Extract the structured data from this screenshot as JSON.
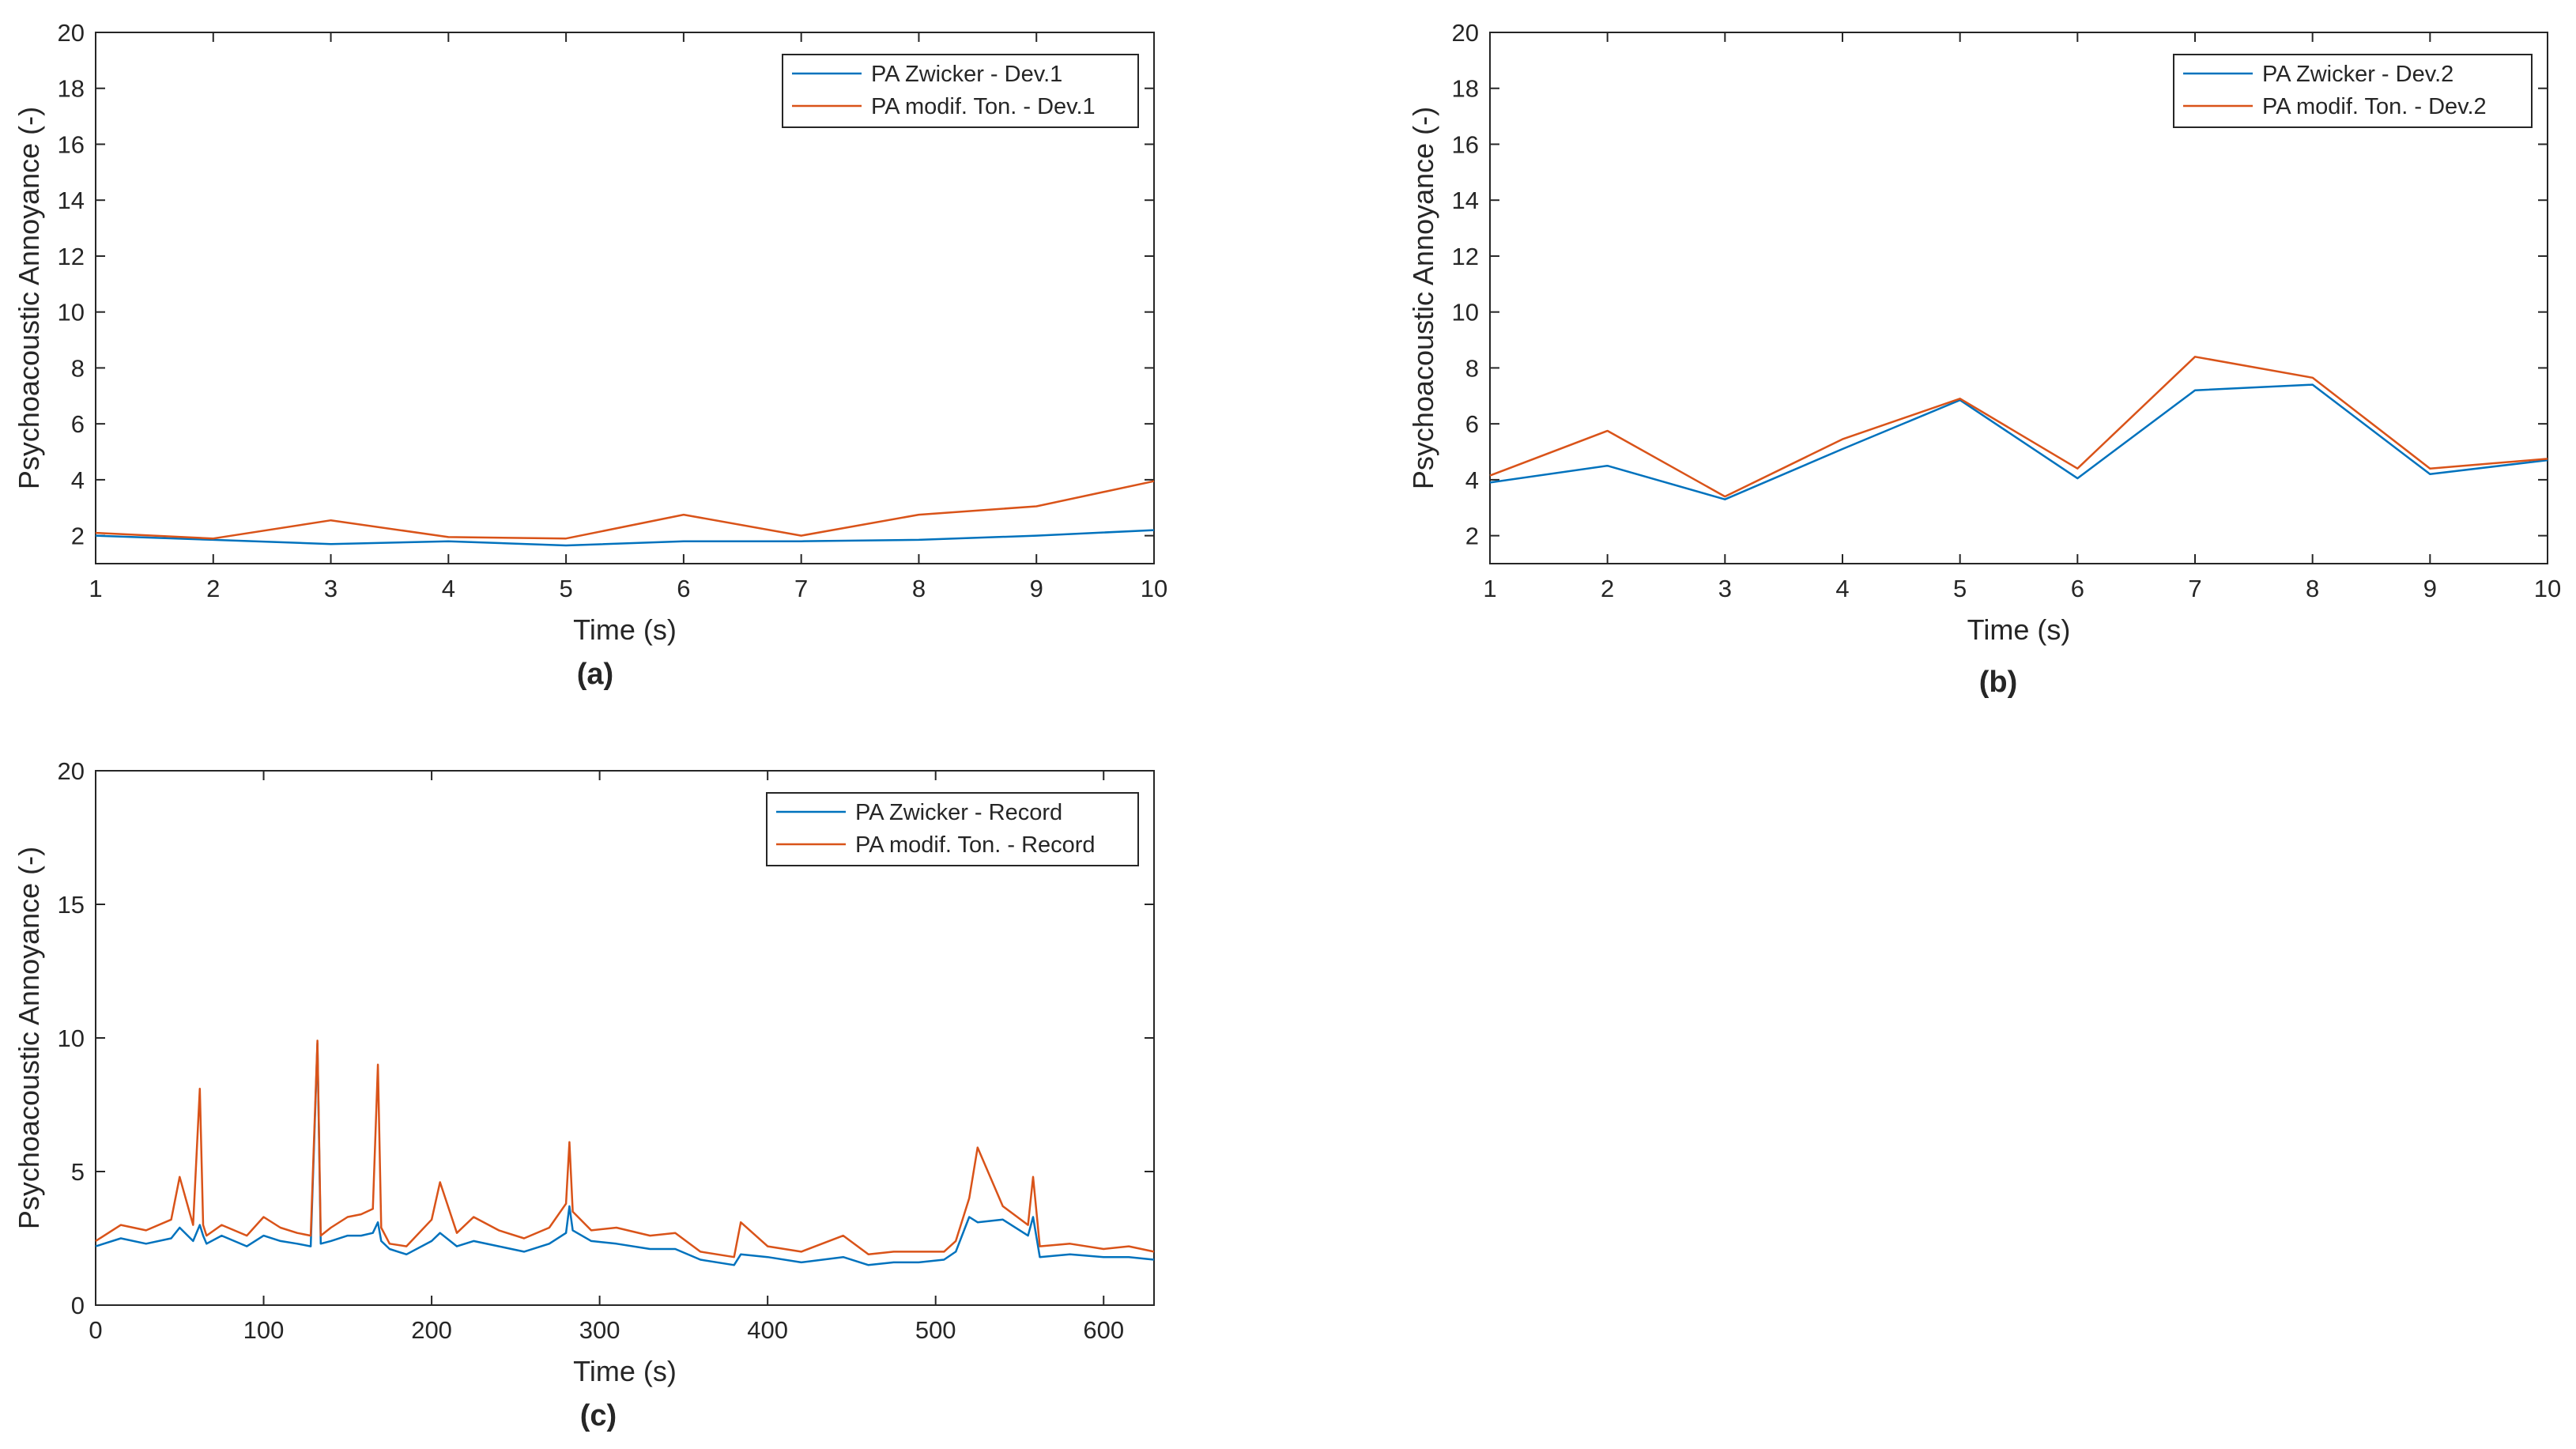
{
  "chart_data": [
    {
      "panel": "(a)",
      "type": "line",
      "xlabel": "Time (s)",
      "ylabel": "Psychoacoustic Annoyance (-)",
      "xlim": [
        1,
        10
      ],
      "ylim": [
        1,
        20
      ],
      "xticks": [
        1,
        2,
        3,
        4,
        5,
        6,
        7,
        8,
        9,
        10
      ],
      "yticks": [
        2,
        4,
        6,
        8,
        10,
        12,
        14,
        16,
        18,
        20
      ],
      "grid": false,
      "legend": "top-right",
      "x": [
        1,
        2,
        3,
        4,
        5,
        6,
        7,
        8,
        9,
        10
      ],
      "series": [
        {
          "name": "PA Zwicker - Dev.1",
          "color": "#0072BD",
          "values": [
            2.0,
            1.85,
            1.7,
            1.8,
            1.65,
            1.8,
            1.8,
            1.85,
            2.0,
            2.2
          ]
        },
        {
          "name": "PA modif. Ton. - Dev.1",
          "color": "#D95319",
          "values": [
            2.1,
            1.9,
            2.55,
            1.95,
            1.9,
            2.75,
            2.0,
            2.75,
            3.05,
            3.95
          ]
        }
      ]
    },
    {
      "panel": "(b)",
      "type": "line",
      "xlabel": "Time (s)",
      "ylabel": "Psychoacoustic Annoyance (-)",
      "xlim": [
        1,
        10
      ],
      "ylim": [
        1,
        20
      ],
      "xticks": [
        1,
        2,
        3,
        4,
        5,
        6,
        7,
        8,
        9,
        10
      ],
      "yticks": [
        2,
        4,
        6,
        8,
        10,
        12,
        14,
        16,
        18,
        20
      ],
      "grid": false,
      "legend": "top-right",
      "x": [
        1,
        2,
        3,
        4,
        5,
        6,
        7,
        8,
        9,
        10
      ],
      "series": [
        {
          "name": "PA Zwicker - Dev.2",
          "color": "#0072BD",
          "values": [
            3.9,
            4.5,
            3.3,
            5.1,
            6.85,
            4.05,
            7.2,
            7.4,
            4.2,
            4.7
          ]
        },
        {
          "name": "PA modif. Ton. - Dev.2",
          "color": "#D95319",
          "values": [
            4.15,
            5.75,
            3.4,
            5.45,
            6.9,
            4.4,
            8.4,
            7.65,
            4.4,
            4.75
          ]
        }
      ]
    },
    {
      "panel": "(c)",
      "type": "line",
      "xlabel": "Time (s)",
      "ylabel": "Psychoacoustic Annoyance (-)",
      "xlim": [
        0,
        630
      ],
      "ylim": [
        0,
        20
      ],
      "xticks": [
        0,
        100,
        200,
        300,
        400,
        500,
        600
      ],
      "yticks": [
        0,
        5,
        10,
        15,
        20
      ],
      "grid": false,
      "legend": "top-right",
      "x": [
        0,
        15,
        30,
        45,
        50,
        58,
        62,
        64,
        66,
        75,
        90,
        100,
        110,
        120,
        128,
        132,
        134,
        140,
        150,
        158,
        165,
        168,
        170,
        175,
        185,
        200,
        205,
        215,
        225,
        240,
        255,
        270,
        280,
        282,
        284,
        295,
        310,
        330,
        345,
        360,
        380,
        384,
        400,
        420,
        445,
        460,
        475,
        490,
        505,
        512,
        520,
        525,
        540,
        555,
        558,
        562,
        580,
        600,
        615,
        630
      ],
      "series": [
        {
          "name": "PA Zwicker - Record",
          "color": "#0072BD",
          "values": [
            2.2,
            2.5,
            2.3,
            2.5,
            2.9,
            2.4,
            3.0,
            2.6,
            2.3,
            2.6,
            2.2,
            2.6,
            2.4,
            2.3,
            2.2,
            9.8,
            2.3,
            2.4,
            2.6,
            2.6,
            2.7,
            3.1,
            2.4,
            2.1,
            1.9,
            2.4,
            2.7,
            2.2,
            2.4,
            2.2,
            2.0,
            2.3,
            2.7,
            3.7,
            2.8,
            2.4,
            2.3,
            2.1,
            2.1,
            1.7,
            1.5,
            1.9,
            1.8,
            1.6,
            1.8,
            1.5,
            1.6,
            1.6,
            1.7,
            2.0,
            3.3,
            3.1,
            3.2,
            2.6,
            3.3,
            1.8,
            1.9,
            1.8,
            1.8,
            1.7
          ]
        },
        {
          "name": "PA modif. Ton. - Record",
          "color": "#D95319",
          "values": [
            2.4,
            3.0,
            2.8,
            3.2,
            4.8,
            3.0,
            8.1,
            3.0,
            2.6,
            3.0,
            2.6,
            3.3,
            2.9,
            2.7,
            2.6,
            9.9,
            2.6,
            2.9,
            3.3,
            3.4,
            3.6,
            9.0,
            2.9,
            2.3,
            2.2,
            3.2,
            4.6,
            2.7,
            3.3,
            2.8,
            2.5,
            2.9,
            3.8,
            6.1,
            3.5,
            2.8,
            2.9,
            2.6,
            2.7,
            2.0,
            1.8,
            3.1,
            2.2,
            2.0,
            2.6,
            1.9,
            2.0,
            2.0,
            2.0,
            2.4,
            4.0,
            5.9,
            3.7,
            3.0,
            4.8,
            2.2,
            2.3,
            2.1,
            2.2,
            2.0
          ]
        }
      ]
    }
  ],
  "captions": [
    "(a)",
    "(b)",
    "(c)"
  ]
}
